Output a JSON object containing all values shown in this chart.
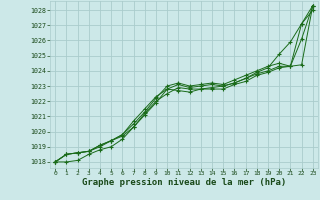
{
  "background_color": "#cce8e8",
  "grid_color": "#aacccc",
  "line_color": "#1a6b1a",
  "marker_color": "#1a6b1a",
  "title": "Graphe pression niveau de la mer (hPa)",
  "title_color": "#1a4a1a",
  "ylabel_ticks": [
    1018,
    1019,
    1020,
    1021,
    1022,
    1023,
    1024,
    1025,
    1026,
    1027,
    1028
  ],
  "xlim": [
    -0.5,
    23.5
  ],
  "ylim": [
    1017.6,
    1028.6
  ],
  "xticks": [
    0,
    1,
    2,
    3,
    4,
    5,
    6,
    7,
    8,
    9,
    10,
    11,
    12,
    13,
    14,
    15,
    16,
    17,
    18,
    19,
    20,
    21,
    22,
    23
  ],
  "series": [
    [
      1018.0,
      1018.0,
      1018.1,
      1018.5,
      1018.8,
      1019.0,
      1019.5,
      1020.3,
      1021.1,
      1021.9,
      1022.8,
      1023.1,
      1022.9,
      1023.0,
      1023.1,
      1023.0,
      1023.2,
      1023.5,
      1023.9,
      1024.2,
      1025.1,
      1025.9,
      1027.1,
      1028.3
    ],
    [
      1018.0,
      1018.5,
      1018.6,
      1018.7,
      1019.1,
      1019.4,
      1019.8,
      1020.5,
      1021.3,
      1022.2,
      1023.0,
      1023.2,
      1023.0,
      1023.1,
      1023.2,
      1023.1,
      1023.4,
      1023.7,
      1024.0,
      1024.3,
      1024.5,
      1024.3,
      1024.4,
      1028.3
    ],
    [
      1018.0,
      1018.5,
      1018.6,
      1018.7,
      1019.1,
      1019.4,
      1019.8,
      1020.7,
      1021.5,
      1022.3,
      1022.8,
      1022.7,
      1022.6,
      1022.8,
      1022.9,
      1023.0,
      1023.2,
      1023.5,
      1023.8,
      1024.0,
      1024.3,
      1024.3,
      1026.1,
      1028.3
    ],
    [
      1018.0,
      1018.5,
      1018.6,
      1018.7,
      1019.0,
      1019.4,
      1019.7,
      1020.3,
      1021.2,
      1022.0,
      1022.5,
      1022.9,
      1022.8,
      1022.8,
      1022.8,
      1022.8,
      1023.1,
      1023.3,
      1023.7,
      1023.9,
      1024.2,
      1024.3,
      1027.1,
      1028.0
    ]
  ]
}
